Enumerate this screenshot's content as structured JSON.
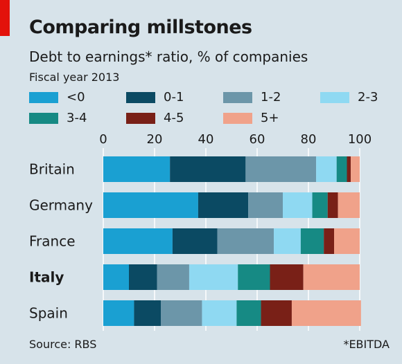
{
  "header": {
    "title": "Comparing millstones",
    "subtitle": "Debt to earnings* ratio, % of companies",
    "note": "Fiscal year 2013"
  },
  "footer": {
    "source": "Source: RBS",
    "footnote": "*EBITDA"
  },
  "colors": {
    "background": "#d7e3ea",
    "accent_tab": "#e3120b",
    "grid": "#ffffff"
  },
  "chart_data": {
    "type": "bar",
    "orientation": "horizontal",
    "stacked": true,
    "title": "Comparing millstones",
    "subtitle": "Debt to earnings* ratio, % of companies",
    "xlim": [
      0,
      100
    ],
    "xticks": [
      0,
      20,
      40,
      60,
      80,
      100
    ],
    "grid": true,
    "legend_position": "top",
    "categories": [
      "Britain",
      "Germany",
      "France",
      "Italy",
      "Spain"
    ],
    "bold_categories": [
      "Italy"
    ],
    "series": [
      {
        "name": "<0",
        "color": "#1aa0d2",
        "values": [
          26,
          37,
          27,
          10,
          12
        ]
      },
      {
        "name": "0-1",
        "color": "#0b4a63",
        "values": [
          29.5,
          19.5,
          17.5,
          11,
          10.5
        ]
      },
      {
        "name": "1-2",
        "color": "#6c96a9",
        "values": [
          27.5,
          13.5,
          22,
          12.5,
          16
        ]
      },
      {
        "name": "2-3",
        "color": "#8fd9f2",
        "values": [
          8,
          11.5,
          10.5,
          19,
          13.5
        ]
      },
      {
        "name": "3-4",
        "color": "#168a84",
        "values": [
          4,
          6,
          9,
          12.5,
          9.5
        ]
      },
      {
        "name": "4-5",
        "color": "#792017",
        "values": [
          1.5,
          4,
          4,
          13,
          12
        ]
      },
      {
        "name": "5+",
        "color": "#f0a28a",
        "values": [
          3.5,
          8.5,
          10,
          22,
          27
        ]
      }
    ]
  }
}
